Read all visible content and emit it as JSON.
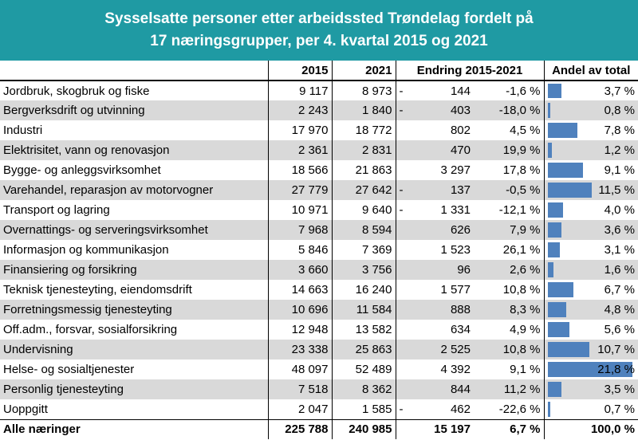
{
  "title": {
    "line1": "Sysselsatte personer etter arbeidssted Trøndelag fordelt på",
    "line2": "17 næringsgrupper, per 4. kvartal 2015 og 2021"
  },
  "columns": {
    "y2015": "2015",
    "y2021": "2021",
    "change": "Endring 2015-2021",
    "share": "Andel av total"
  },
  "rows": [
    {
      "name": "Jordbruk, skogbruk og fiske",
      "v2015": "9 117",
      "v2021": "8 973",
      "sign": "-",
      "abs": "144",
      "pct": "-1,6 %",
      "share": "3,7 %",
      "share_value": 3.7
    },
    {
      "name": "Bergverksdrift og utvinning",
      "v2015": "2 243",
      "v2021": "1 840",
      "sign": "-",
      "abs": "403",
      "pct": "-18,0 %",
      "share": "0,8 %",
      "share_value": 0.8
    },
    {
      "name": "Industri",
      "v2015": "17 970",
      "v2021": "18 772",
      "sign": "",
      "abs": "802",
      "pct": "4,5 %",
      "share": "7,8 %",
      "share_value": 7.8
    },
    {
      "name": "Elektrisitet, vann og renovasjon",
      "v2015": "2 361",
      "v2021": "2 831",
      "sign": "",
      "abs": "470",
      "pct": "19,9 %",
      "share": "1,2 %",
      "share_value": 1.2
    },
    {
      "name": "Bygge- og anleggsvirksomhet",
      "v2015": "18 566",
      "v2021": "21 863",
      "sign": "",
      "abs": "3 297",
      "pct": "17,8 %",
      "share": "9,1 %",
      "share_value": 9.1
    },
    {
      "name": "Varehandel, reparasjon av motorvogner",
      "v2015": "27 779",
      "v2021": "27 642",
      "sign": "-",
      "abs": "137",
      "pct": "-0,5 %",
      "share": "11,5 %",
      "share_value": 11.5
    },
    {
      "name": "Transport og lagring",
      "v2015": "10 971",
      "v2021": "9 640",
      "sign": "-",
      "abs": "1 331",
      "pct": "-12,1 %",
      "share": "4,0 %",
      "share_value": 4.0
    },
    {
      "name": "Overnattings- og serveringsvirksomhet",
      "v2015": "7 968",
      "v2021": "8 594",
      "sign": "",
      "abs": "626",
      "pct": "7,9 %",
      "share": "3,6 %",
      "share_value": 3.6
    },
    {
      "name": "Informasjon og kommunikasjon",
      "v2015": "5 846",
      "v2021": "7 369",
      "sign": "",
      "abs": "1 523",
      "pct": "26,1 %",
      "share": "3,1 %",
      "share_value": 3.1
    },
    {
      "name": "Finansiering og forsikring",
      "v2015": "3 660",
      "v2021": "3 756",
      "sign": "",
      "abs": "96",
      "pct": "2,6 %",
      "share": "1,6 %",
      "share_value": 1.6
    },
    {
      "name": "Teknisk tjenesteyting, eiendomsdrift",
      "v2015": "14 663",
      "v2021": "16 240",
      "sign": "",
      "abs": "1 577",
      "pct": "10,8 %",
      "share": "6,7 %",
      "share_value": 6.7
    },
    {
      "name": "Forretningsmessig tjenesteyting",
      "v2015": "10 696",
      "v2021": "11 584",
      "sign": "",
      "abs": "888",
      "pct": "8,3 %",
      "share": "4,8 %",
      "share_value": 4.8
    },
    {
      "name": "Off.adm., forsvar, sosialforsikring",
      "v2015": "12 948",
      "v2021": "13 582",
      "sign": "",
      "abs": "634",
      "pct": "4,9 %",
      "share": "5,6 %",
      "share_value": 5.6
    },
    {
      "name": "Undervisning",
      "v2015": "23 338",
      "v2021": "25 863",
      "sign": "",
      "abs": "2 525",
      "pct": "10,8 %",
      "share": "10,7 %",
      "share_value": 10.7
    },
    {
      "name": "Helse- og sosialtjenester",
      "v2015": "48 097",
      "v2021": "52 489",
      "sign": "",
      "abs": "4 392",
      "pct": "9,1 %",
      "share": "21,8 %",
      "share_value": 21.8
    },
    {
      "name": "Personlig tjenesteyting",
      "v2015": "7 518",
      "v2021": "8 362",
      "sign": "",
      "abs": "844",
      "pct": "11,2 %",
      "share": "3,5 %",
      "share_value": 3.5
    },
    {
      "name": "Uoppgitt",
      "v2015": "2 047",
      "v2021": "1 585",
      "sign": "-",
      "abs": "462",
      "pct": "-22,6 %",
      "share": "0,7 %",
      "share_value": 0.7
    }
  ],
  "total": {
    "name": "Alle næringer",
    "v2015": "225 788",
    "v2021": "240 985",
    "sign": "",
    "abs": "15 197",
    "pct": "6,7 %",
    "share": "100,0 %"
  },
  "colors": {
    "header_bg": "#1f9aa3",
    "bar": "#4f81bd",
    "stripe": "#d9d9d9"
  }
}
